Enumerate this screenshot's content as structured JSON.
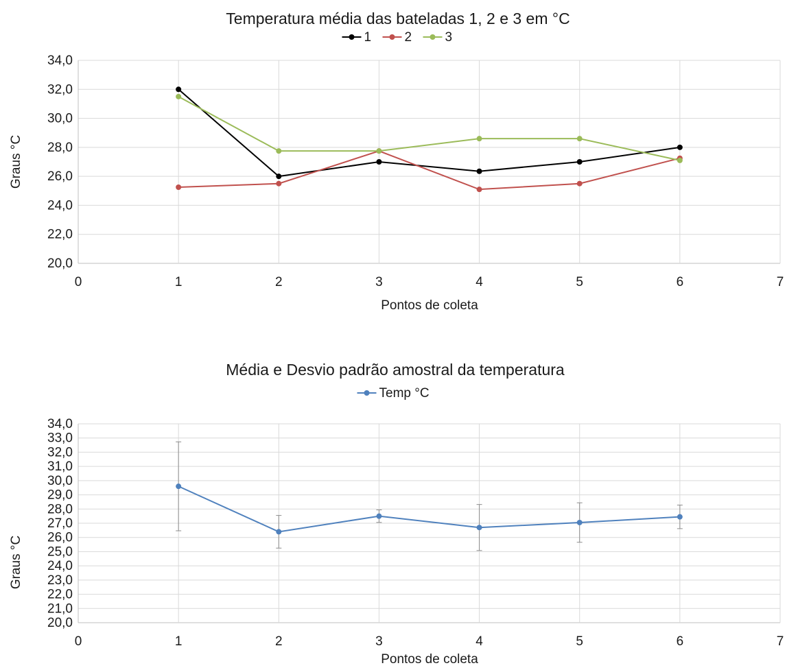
{
  "chart_data": [
    {
      "type": "line",
      "title": "Temperatura média das bateladas 1, 2 e 3 em  °C",
      "xlabel": "Pontos de coleta",
      "ylabel": "Graus °C",
      "xlim": [
        0,
        7
      ],
      "ylim": [
        20,
        34
      ],
      "x_ticks": [
        "0",
        "1",
        "2",
        "3",
        "4",
        "5",
        "6",
        "7"
      ],
      "y_ticks": [
        "20,0",
        "22,0",
        "24,0",
        "26,0",
        "28,0",
        "30,0",
        "32,0",
        "34,0"
      ],
      "legend_position": "top",
      "grid": true,
      "x": [
        1,
        2,
        3,
        4,
        5,
        6
      ],
      "series": [
        {
          "name": "1",
          "color": "#000000",
          "values": [
            32.0,
            26.0,
            27.0,
            26.35,
            27.0,
            28.0
          ]
        },
        {
          "name": "2",
          "color": "#c0504d",
          "values": [
            25.25,
            25.5,
            27.75,
            25.1,
            25.5,
            27.25
          ]
        },
        {
          "name": "3",
          "color": "#9bbb59",
          "values": [
            31.5,
            27.75,
            27.75,
            28.6,
            28.6,
            27.1
          ]
        }
      ]
    },
    {
      "type": "line",
      "title": "Média e Desvio padrão amostral da temperatura",
      "xlabel": "Pontos de coleta",
      "ylabel": "Graus °C",
      "xlim": [
        0,
        7
      ],
      "ylim": [
        20,
        34
      ],
      "x_ticks": [
        "0",
        "1",
        "2",
        "3",
        "4",
        "5",
        "6",
        "7"
      ],
      "y_ticks": [
        "20,0",
        "21,0",
        "22,0",
        "23,0",
        "24,0",
        "25,0",
        "26,0",
        "27,0",
        "28,0",
        "29,0",
        "30,0",
        "31,0",
        "32,0",
        "33,0",
        "34,0"
      ],
      "legend_position": "top",
      "grid": true,
      "x": [
        1,
        2,
        3,
        4,
        5,
        6
      ],
      "series": [
        {
          "name": "Temp °C",
          "color": "#4f81bd",
          "values": [
            29.6,
            26.4,
            27.5,
            26.7,
            27.05,
            27.45
          ],
          "error": [
            3.13,
            1.15,
            0.44,
            1.62,
            1.39,
            0.83
          ]
        }
      ]
    }
  ]
}
